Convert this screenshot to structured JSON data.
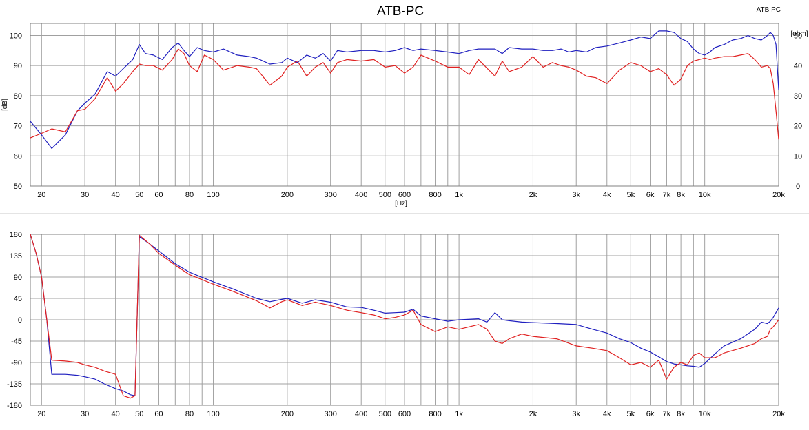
{
  "title": "ATB-PC",
  "legend_label": "ATB PC",
  "colors": {
    "blue": "#1f1fbf",
    "red": "#e02020",
    "grid": "#a0a0a0",
    "frame": "#808080",
    "text": "#000000"
  },
  "chart_data": [
    {
      "type": "line",
      "title": "ATB-PC",
      "xlabel": "[Hz]",
      "ylabel": "[dB]",
      "y2label": "[ohm]",
      "x_scale": "log",
      "xlim": [
        18,
        20000
      ],
      "ylim": [
        50,
        104
      ],
      "y2lim": [
        0,
        54
      ],
      "grid": true,
      "x_tick_labels": [
        "20",
        "30",
        "40",
        "50",
        "60",
        "80",
        "100",
        "200",
        "300",
        "400",
        "500",
        "600",
        "800",
        "1k",
        "2k",
        "3k",
        "4k",
        "5k",
        "6k",
        "7k",
        "8k",
        "10k",
        "20k"
      ],
      "x_tick_values": [
        20,
        30,
        40,
        50,
        60,
        80,
        100,
        200,
        300,
        400,
        500,
        600,
        800,
        1000,
        2000,
        3000,
        4000,
        5000,
        6000,
        7000,
        8000,
        10000,
        20000
      ],
      "y_ticks": [
        50,
        60,
        70,
        80,
        90,
        100
      ],
      "y2_ticks": [
        0,
        10,
        20,
        30,
        40,
        50
      ],
      "series": [
        {
          "color": "blue",
          "x": [
            18,
            20,
            22,
            25,
            28,
            30,
            33,
            37,
            40,
            43,
            47,
            50,
            53,
            57,
            62,
            68,
            72,
            76,
            80,
            86,
            92,
            100,
            110,
            125,
            140,
            150,
            170,
            190,
            200,
            220,
            240,
            260,
            280,
            300,
            320,
            350,
            400,
            450,
            500,
            550,
            600,
            650,
            700,
            800,
            900,
            1000,
            1100,
            1200,
            1400,
            1500,
            1600,
            1800,
            2000,
            2200,
            2400,
            2600,
            2800,
            3000,
            3300,
            3600,
            4000,
            4500,
            5000,
            5500,
            6000,
            6500,
            7000,
            7500,
            8000,
            8500,
            9000,
            9500,
            10000,
            10500,
            11000,
            12000,
            13000,
            14000,
            15000,
            16000,
            17000,
            18000,
            18500,
            19000,
            19500,
            20000
          ],
          "y": [
            71.5,
            67,
            62.5,
            67,
            75,
            77.5,
            80.5,
            88,
            86.5,
            89,
            92,
            97,
            94,
            93.5,
            92,
            96,
            97.5,
            95,
            93,
            96,
            95,
            94.5,
            95.5,
            93.5,
            93,
            92.5,
            90.5,
            91,
            92.5,
            91,
            93.5,
            92.5,
            94,
            91.5,
            95,
            94.5,
            95,
            95,
            94.5,
            95,
            96,
            95,
            95.5,
            95,
            94.5,
            94,
            95,
            95.5,
            95.5,
            94,
            96,
            95.5,
            95.5,
            95,
            95,
            95.5,
            94.5,
            95,
            94.5,
            96,
            96.5,
            97.5,
            98.5,
            99.5,
            99,
            101.5,
            101.5,
            101,
            99,
            98,
            95.5,
            94,
            93.5,
            94.5,
            96,
            97,
            98.5,
            99,
            100,
            99,
            98.5,
            100,
            101,
            100,
            97,
            82
          ]
        },
        {
          "color": "red",
          "x": [
            18,
            20,
            22,
            25,
            28,
            30,
            33,
            37,
            40,
            43,
            47,
            50,
            53,
            57,
            62,
            68,
            72,
            76,
            80,
            86,
            92,
            100,
            110,
            125,
            140,
            150,
            170,
            190,
            200,
            220,
            240,
            260,
            280,
            300,
            320,
            350,
            400,
            450,
            500,
            550,
            600,
            650,
            700,
            800,
            900,
            1000,
            1100,
            1200,
            1400,
            1500,
            1600,
            1800,
            2000,
            2200,
            2400,
            2600,
            2800,
            3000,
            3300,
            3600,
            4000,
            4500,
            5000,
            5500,
            6000,
            6500,
            7000,
            7500,
            8000,
            8500,
            9000,
            9500,
            10000,
            10500,
            11000,
            12000,
            13000,
            14000,
            15000,
            16000,
            17000,
            18000,
            18500,
            19000,
            19500,
            20000
          ],
          "y": [
            66,
            67.5,
            69,
            68,
            75,
            75.5,
            79,
            86,
            81.5,
            84,
            88,
            90.5,
            90,
            90,
            88.5,
            92,
            95.5,
            94,
            90,
            88,
            93.5,
            92,
            88.5,
            90,
            89.5,
            89,
            83.5,
            86.5,
            89.5,
            91.5,
            86.5,
            89.5,
            91,
            87.5,
            91,
            92,
            91.5,
            92,
            89.5,
            90,
            87.5,
            89.5,
            93.5,
            91.5,
            89.5,
            89.5,
            87,
            92,
            86.5,
            91.5,
            88,
            89.5,
            93,
            89.5,
            91,
            90,
            89.5,
            88.5,
            86.5,
            86,
            84,
            88.5,
            91,
            90,
            88,
            89,
            87,
            83.5,
            85.5,
            90,
            91.5,
            92,
            92.5,
            92,
            92.5,
            93,
            93,
            93.5,
            94,
            92,
            89.5,
            90,
            89,
            84,
            75,
            65.5
          ]
        }
      ]
    },
    {
      "type": "line",
      "title": "",
      "xlabel": "",
      "ylabel": "",
      "x_scale": "log",
      "xlim": [
        18,
        20000
      ],
      "ylim": [
        -180,
        180
      ],
      "grid": true,
      "x_tick_labels": [
        "20",
        "30",
        "40",
        "50",
        "60",
        "80",
        "100",
        "200",
        "300",
        "400",
        "500",
        "600",
        "800",
        "1k",
        "2k",
        "3k",
        "4k",
        "5k",
        "6k",
        "7k",
        "8k",
        "10k",
        "20k"
      ],
      "x_tick_values": [
        20,
        30,
        40,
        50,
        60,
        80,
        100,
        200,
        300,
        400,
        500,
        600,
        800,
        1000,
        2000,
        3000,
        4000,
        5000,
        6000,
        7000,
        8000,
        10000,
        20000
      ],
      "y_ticks": [
        180,
        135,
        90,
        45,
        0,
        -45,
        -90,
        -135,
        -180
      ],
      "series": [
        {
          "color": "blue",
          "x": [
            18,
            19,
            20,
            21,
            22,
            25,
            28,
            30,
            33,
            36,
            40,
            43,
            46,
            48,
            50,
            55,
            60,
            70,
            80,
            100,
            120,
            150,
            170,
            190,
            200,
            230,
            260,
            300,
            350,
            400,
            450,
            500,
            550,
            600,
            650,
            700,
            800,
            900,
            1000,
            1200,
            1300,
            1400,
            1500,
            1600,
            1800,
            2000,
            2500,
            3000,
            3500,
            4000,
            4500,
            5000,
            5500,
            6000,
            6500,
            7000,
            7500,
            8000,
            8500,
            9000,
            9500,
            10000,
            11000,
            12000,
            14000,
            16000,
            17000,
            18000,
            18500,
            19000,
            20000
          ],
          "y": [
            180,
            140,
            90,
            0,
            -115,
            -115,
            -117,
            -120,
            -125,
            -135,
            -145,
            -150,
            -158,
            -160,
            175,
            160,
            145,
            118,
            100,
            80,
            65,
            45,
            38,
            43,
            45,
            35,
            42,
            37,
            27,
            26,
            20,
            14,
            15,
            16,
            22,
            8,
            2,
            -3,
            0,
            2,
            -5,
            15,
            0,
            -2,
            -5,
            -6,
            -8,
            -10,
            -20,
            -28,
            -40,
            -48,
            -60,
            -68,
            -78,
            -88,
            -93,
            -95,
            -97,
            -98,
            -100,
            -92,
            -72,
            -55,
            -40,
            -20,
            -5,
            -8,
            -3,
            5,
            25
          ]
        },
        {
          "color": "red",
          "x": [
            18,
            19,
            20,
            21,
            22,
            25,
            28,
            30,
            33,
            36,
            40,
            43,
            46,
            48,
            50,
            55,
            60,
            70,
            80,
            100,
            120,
            150,
            170,
            190,
            200,
            230,
            260,
            300,
            350,
            400,
            450,
            500,
            550,
            600,
            650,
            700,
            800,
            900,
            1000,
            1200,
            1300,
            1400,
            1500,
            1600,
            1800,
            2000,
            2500,
            3000,
            3500,
            4000,
            4500,
            5000,
            5500,
            6000,
            6500,
            7000,
            7500,
            8000,
            8500,
            9000,
            9500,
            10000,
            11000,
            12000,
            14000,
            16000,
            17000,
            18000,
            18500,
            19000,
            20000
          ],
          "y": [
            180,
            140,
            90,
            0,
            -85,
            -87,
            -90,
            -95,
            -100,
            -108,
            -115,
            -160,
            -165,
            -160,
            178,
            160,
            140,
            115,
            95,
            75,
            60,
            40,
            25,
            38,
            42,
            30,
            37,
            30,
            20,
            15,
            10,
            2,
            5,
            10,
            20,
            -10,
            -25,
            -15,
            -20,
            -10,
            -20,
            -45,
            -50,
            -40,
            -30,
            -35,
            -40,
            -55,
            -60,
            -65,
            -80,
            -95,
            -90,
            -100,
            -85,
            -125,
            -100,
            -90,
            -95,
            -75,
            -70,
            -80,
            -80,
            -70,
            -60,
            -50,
            -40,
            -35,
            -20,
            -15,
            0
          ]
        }
      ]
    }
  ]
}
